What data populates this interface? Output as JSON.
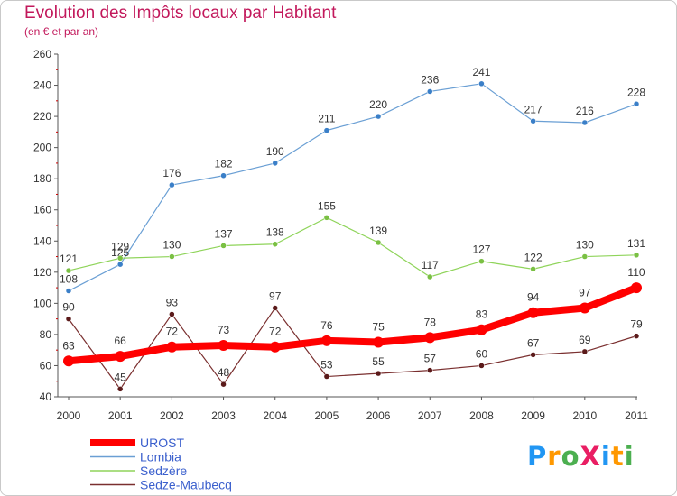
{
  "title": "Evolution des Impôts locaux par Habitant",
  "subtitle": "(en € et par an)",
  "logo": {
    "text": "ProXiti",
    "letters": [
      {
        "ch": "P",
        "color": "#2196f3"
      },
      {
        "ch": "r",
        "color": "#ff9800"
      },
      {
        "ch": "o",
        "color": "#4caf50"
      },
      {
        "ch": "X",
        "color": "#e91e63"
      },
      {
        "ch": "i",
        "color": "#2196f3"
      },
      {
        "ch": "t",
        "color": "#ff9800"
      },
      {
        "ch": "i",
        "color": "#4caf50"
      }
    ]
  },
  "chart_data": {
    "type": "line",
    "categories": [
      "2000",
      "2001",
      "2002",
      "2003",
      "2004",
      "2005",
      "2006",
      "2007",
      "2008",
      "2009",
      "2010",
      "2011"
    ],
    "ylim": [
      40,
      260
    ],
    "yticks": [
      40,
      60,
      80,
      100,
      120,
      140,
      160,
      180,
      200,
      220,
      240,
      260
    ],
    "grid": false,
    "legend_position": "bottom-left",
    "series": [
      {
        "name": "Lombia",
        "color": "#6a9fd4",
        "marker": "#3a7fc8",
        "width": 1.2,
        "values": [
          108,
          125,
          176,
          182,
          190,
          211,
          220,
          236,
          241,
          217,
          216,
          228
        ],
        "labels": [
          "108",
          "125",
          "176",
          "182",
          "190",
          "211",
          "220",
          "236",
          "241",
          "217",
          "216",
          "228"
        ]
      },
      {
        "name": "Sedzère",
        "color": "#8fd45a",
        "marker": "#7ac043",
        "width": 1.2,
        "values": [
          121,
          129,
          130,
          137,
          138,
          155,
          139,
          117,
          127,
          122,
          130,
          131
        ],
        "labels": [
          "121",
          "129",
          "130",
          "137",
          "138",
          "155",
          "139",
          "117",
          "127",
          "122",
          "130",
          "131"
        ]
      },
      {
        "name": "Sedze-Maubecq",
        "color": "#7a2f2f",
        "marker": "#5b1a1a",
        "width": 1.2,
        "values": [
          90,
          45,
          93,
          48,
          97,
          53,
          55,
          57,
          60,
          67,
          69,
          79
        ],
        "labels": [
          "90",
          "45",
          "93",
          "48",
          "97",
          "53",
          "55",
          "57",
          "60",
          "67",
          "69",
          "79"
        ]
      },
      {
        "name": "UROST",
        "color": "#ff0000",
        "marker": "#ff0000",
        "width": 8,
        "values": [
          63,
          66,
          72,
          73,
          72,
          76,
          75,
          78,
          83,
          94,
          97,
          110
        ],
        "labels": [
          "63",
          "66",
          "72",
          "73",
          "72",
          "76",
          "75",
          "78",
          "83",
          "94",
          "97",
          "110"
        ]
      }
    ],
    "legend": [
      "UROST",
      "Lombia",
      "Sedzère",
      "Sedze-Maubecq"
    ]
  }
}
